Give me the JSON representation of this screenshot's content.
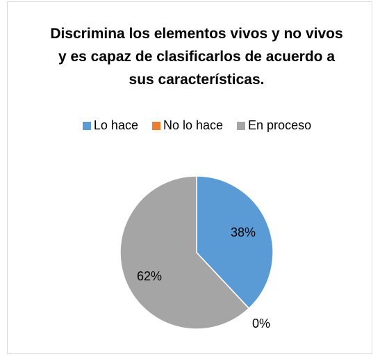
{
  "chart_data": {
    "type": "pie",
    "title": "Discrimina los elementos vivos y no vivos y es capaz de clasificarlos de acuerdo a sus características.",
    "categories": [
      "Lo hace",
      "No lo hace",
      "En proceso"
    ],
    "values": [
      38,
      0,
      62
    ],
    "value_labels": [
      "38%",
      "0%",
      "62%"
    ],
    "colors": [
      "#5b9bd5",
      "#ed7d31",
      "#a5a5a5"
    ],
    "legend": "top"
  }
}
